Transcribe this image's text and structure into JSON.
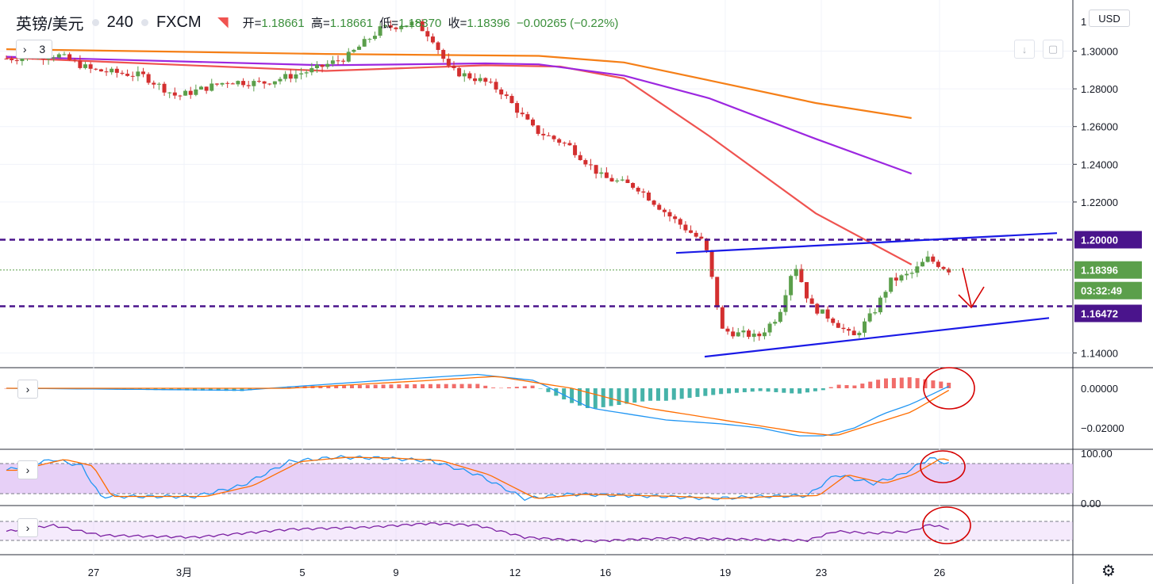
{
  "header": {
    "symbol": "英镑/美元",
    "interval": "240",
    "exchange": "FXCM",
    "open_label": "开=",
    "open": "1.18661",
    "high_label": "高=",
    "high": "1.18661",
    "low_label": "低=",
    "low": "1.18370",
    "close_label": "收=",
    "close": "1.18396",
    "change": "−0.00265 (−0.22%)",
    "indicator_count": "3",
    "currency": "USD"
  },
  "colors": {
    "up": "#5b9f4b",
    "down": "#d32f2f",
    "ema_short": "#ef5350",
    "ema_mid": "#9c27e0",
    "ema_long": "#f57f17",
    "channel": "#1a1ae6",
    "level": "#4a148c",
    "annot": "#d50000",
    "macd_line": "#2196f3",
    "macd_signal": "#ff6d00",
    "hist_pos": "#ef5350",
    "hist_neg": "#26a69a",
    "stoch_band": "#e1c4f5",
    "rsi": "#7b1fa2"
  },
  "chart_data": {
    "type": "candlestick",
    "price_axis": {
      "ticks": [
        "1.30000",
        "1.28000",
        "1.26000",
        "1.24000",
        "1.22000",
        "1.20000",
        "1.18396",
        "1.16472",
        "1.14000"
      ],
      "range": [
        1.133,
        1.325
      ]
    },
    "price_labels": {
      "level_high": "1.20000",
      "last_price": "1.18396",
      "countdown": "03:32:49",
      "level_low": "1.16472"
    },
    "horizontal_levels": [
      1.2,
      1.16472
    ],
    "last_price": 1.18396,
    "trend_channel": {
      "upper": [
        {
          "x": "18",
          "y": 1.193
        },
        {
          "x": "27",
          "y": 1.2035
        }
      ],
      "lower": [
        {
          "x": "18",
          "y": 1.138
        },
        {
          "x": "27",
          "y": 1.1585
        }
      ]
    },
    "time_axis_labels": [
      "27",
      "3月",
      "5",
      "9",
      "12",
      "16",
      "19",
      "23",
      "26"
    ],
    "macd_axis_ticks": [
      "0.00000",
      "−0.02000"
    ],
    "stoch_axis_ticks": [
      "100.00",
      "0.00"
    ],
    "moving_averages": [
      {
        "key": "ema_short",
        "points": [
          [
            0,
            1.2965
          ],
          [
            0.3,
            1.2895
          ],
          [
            0.45,
            1.2925
          ],
          [
            0.52,
            1.2918
          ],
          [
            0.58,
            1.2855
          ],
          [
            0.66,
            1.255
          ],
          [
            0.76,
            1.214
          ],
          [
            0.85,
            1.1868
          ]
        ]
      },
      {
        "key": "ema_mid",
        "points": [
          [
            0,
            1.297
          ],
          [
            0.3,
            1.2925
          ],
          [
            0.45,
            1.2935
          ],
          [
            0.5,
            1.293
          ],
          [
            0.58,
            1.287
          ],
          [
            0.66,
            1.275
          ],
          [
            0.76,
            1.2535
          ],
          [
            0.85,
            1.235
          ]
        ]
      },
      {
        "key": "ema_long",
        "points": [
          [
            0,
            1.301
          ],
          [
            0.3,
            1.2985
          ],
          [
            0.5,
            1.2975
          ],
          [
            0.58,
            1.294
          ],
          [
            0.66,
            1.2845
          ],
          [
            0.76,
            1.2725
          ],
          [
            0.85,
            1.2645
          ]
        ]
      }
    ]
  }
}
